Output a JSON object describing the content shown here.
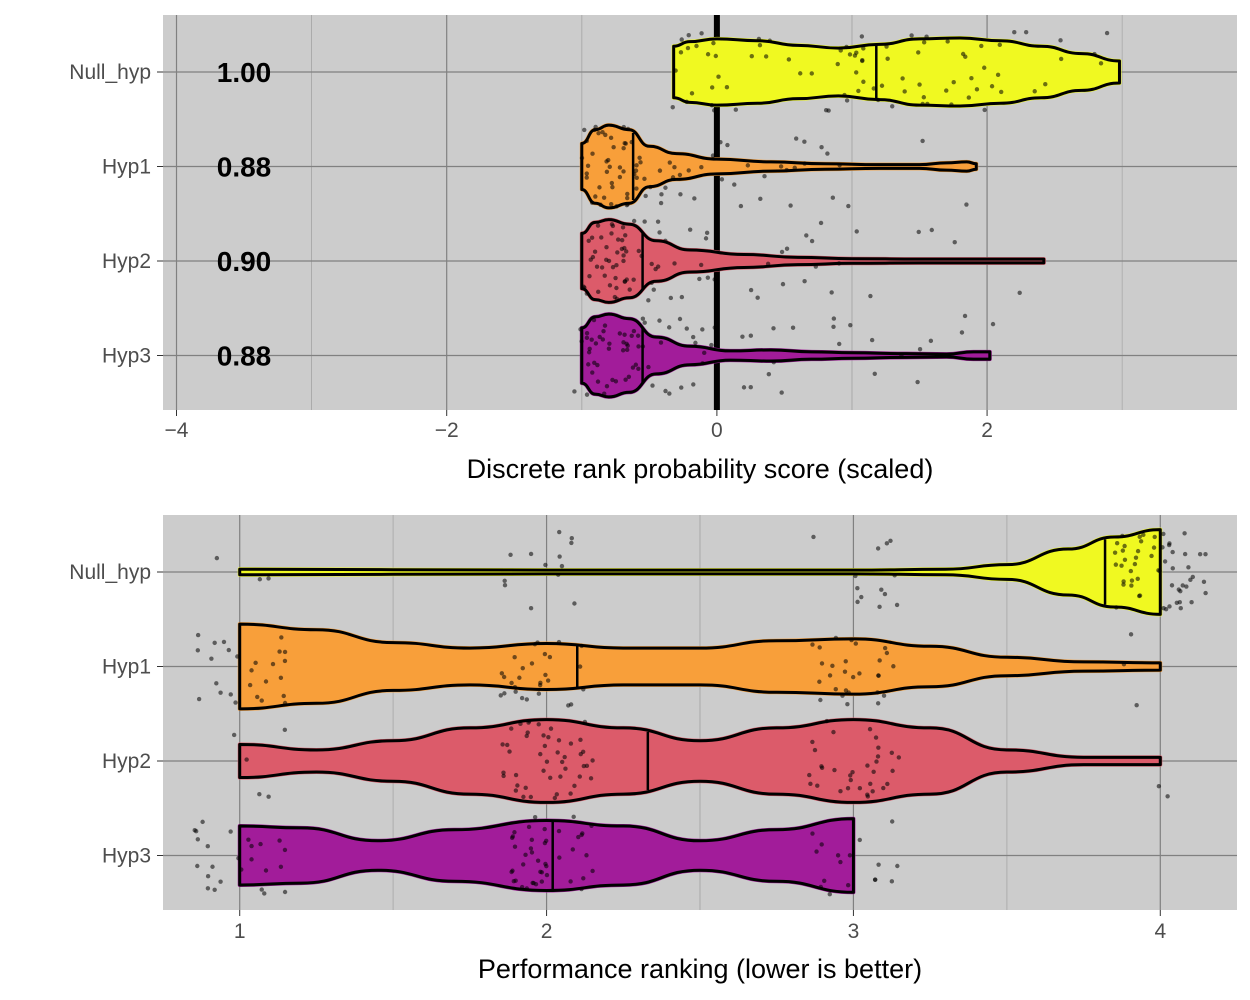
{
  "chart_data": [
    {
      "type": "violin",
      "panel": "top",
      "orientation": "horizontal",
      "xlabel": "Discrete rank probability score (scaled)",
      "ylabel": "",
      "xlim": [
        -4.1,
        3.85
      ],
      "xticks": [
        -4,
        -2,
        0,
        2
      ],
      "xtick_labels": [
        "−4",
        "−2",
        "0",
        "2"
      ],
      "grid": true,
      "reference_line_x": 0,
      "categories": [
        "Null_hyp",
        "Hyp1",
        "Hyp2",
        "Hyp3"
      ],
      "annotations": [
        "1.00",
        "0.88",
        "0.90",
        "0.88"
      ],
      "series": [
        {
          "category": "Null_hyp",
          "color": "#f0f921",
          "min": -0.32,
          "max": 2.98,
          "median": 1.18,
          "profile": [
            [
              -0.32,
              0.28
            ],
            [
              -0.2,
              0.33
            ],
            [
              0.0,
              0.36
            ],
            [
              0.3,
              0.34
            ],
            [
              0.6,
              0.29
            ],
            [
              0.9,
              0.26
            ],
            [
              1.2,
              0.3
            ],
            [
              1.5,
              0.36
            ],
            [
              1.8,
              0.37
            ],
            [
              2.1,
              0.34
            ],
            [
              2.4,
              0.28
            ],
            [
              2.7,
              0.2
            ],
            [
              2.98,
              0.12
            ]
          ]
        },
        {
          "category": "Hyp1",
          "color": "#f89f3a",
          "min": -1.0,
          "max": 1.92,
          "median": -0.62,
          "profile": [
            [
              -1.0,
              0.25
            ],
            [
              -0.9,
              0.4
            ],
            [
              -0.8,
              0.45
            ],
            [
              -0.65,
              0.4
            ],
            [
              -0.5,
              0.22
            ],
            [
              -0.3,
              0.14
            ],
            [
              0.0,
              0.08
            ],
            [
              0.4,
              0.05
            ],
            [
              0.8,
              0.03
            ],
            [
              1.2,
              0.02
            ],
            [
              1.5,
              0.02
            ],
            [
              1.7,
              0.04
            ],
            [
              1.85,
              0.05
            ],
            [
              1.92,
              0.03
            ]
          ]
        },
        {
          "category": "Hyp2",
          "color": "#dc5b6a",
          "min": -1.0,
          "max": 2.42,
          "median": -0.55,
          "profile": [
            [
              -1.0,
              0.3
            ],
            [
              -0.9,
              0.42
            ],
            [
              -0.8,
              0.45
            ],
            [
              -0.65,
              0.4
            ],
            [
              -0.45,
              0.22
            ],
            [
              -0.2,
              0.12
            ],
            [
              0.2,
              0.07
            ],
            [
              0.6,
              0.04
            ],
            [
              1.0,
              0.025
            ],
            [
              1.5,
              0.02
            ],
            [
              2.0,
              0.02
            ],
            [
              2.3,
              0.02
            ],
            [
              2.42,
              0.02
            ]
          ]
        },
        {
          "category": "Hyp3",
          "color": "#a21c9a",
          "min": -1.0,
          "max": 2.02,
          "median": -0.55,
          "profile": [
            [
              -1.0,
              0.3
            ],
            [
              -0.9,
              0.42
            ],
            [
              -0.8,
              0.45
            ],
            [
              -0.65,
              0.4
            ],
            [
              -0.45,
              0.2
            ],
            [
              -0.2,
              0.1
            ],
            [
              0.1,
              0.05
            ],
            [
              0.4,
              0.06
            ],
            [
              0.7,
              0.04
            ],
            [
              1.0,
              0.03
            ],
            [
              1.4,
              0.02
            ],
            [
              1.7,
              0.015
            ],
            [
              1.9,
              0.04
            ],
            [
              2.02,
              0.04
            ]
          ]
        }
      ]
    },
    {
      "type": "violin",
      "panel": "bottom",
      "orientation": "horizontal",
      "xlabel": "Performance ranking (lower is better)",
      "ylabel": "",
      "xlim": [
        0.75,
        4.25
      ],
      "xticks": [
        1,
        2,
        3,
        4
      ],
      "xtick_labels": [
        "1",
        "2",
        "3",
        "4"
      ],
      "grid": true,
      "categories": [
        "Null_hyp",
        "Hyp1",
        "Hyp2",
        "Hyp3"
      ],
      "series": [
        {
          "category": "Null_hyp",
          "color": "#f0f921",
          "min": 1.0,
          "max": 4.0,
          "median": 3.82,
          "profile": [
            [
              1.0,
              0.03
            ],
            [
              2.0,
              0.02
            ],
            [
              3.0,
              0.02
            ],
            [
              3.3,
              0.03
            ],
            [
              3.5,
              0.08
            ],
            [
              3.7,
              0.25
            ],
            [
              3.85,
              0.38
            ],
            [
              4.0,
              0.46
            ]
          ]
        },
        {
          "category": "Hyp1",
          "color": "#f89f3a",
          "min": 1.0,
          "max": 4.0,
          "median": 2.1,
          "profile": [
            [
              1.0,
              0.46
            ],
            [
              1.25,
              0.4
            ],
            [
              1.5,
              0.26
            ],
            [
              1.75,
              0.2
            ],
            [
              2.0,
              0.25
            ],
            [
              2.25,
              0.2
            ],
            [
              2.5,
              0.2
            ],
            [
              2.75,
              0.28
            ],
            [
              3.0,
              0.3
            ],
            [
              3.25,
              0.22
            ],
            [
              3.5,
              0.1
            ],
            [
              3.75,
              0.05
            ],
            [
              4.0,
              0.04
            ]
          ]
        },
        {
          "category": "Hyp2",
          "color": "#dc5b6a",
          "min": 1.0,
          "max": 4.0,
          "median": 2.33,
          "profile": [
            [
              1.0,
              0.18
            ],
            [
              1.25,
              0.12
            ],
            [
              1.5,
              0.22
            ],
            [
              1.75,
              0.36
            ],
            [
              2.0,
              0.45
            ],
            [
              2.25,
              0.36
            ],
            [
              2.5,
              0.22
            ],
            [
              2.75,
              0.36
            ],
            [
              3.0,
              0.45
            ],
            [
              3.25,
              0.36
            ],
            [
              3.5,
              0.12
            ],
            [
              3.75,
              0.04
            ],
            [
              4.0,
              0.04
            ]
          ]
        },
        {
          "category": "Hyp3",
          "color": "#a21c9a",
          "min": 1.0,
          "max": 3.0,
          "median": 2.02,
          "profile": [
            [
              1.0,
              0.32
            ],
            [
              1.2,
              0.3
            ],
            [
              1.45,
              0.16
            ],
            [
              1.7,
              0.28
            ],
            [
              2.0,
              0.38
            ],
            [
              2.25,
              0.32
            ],
            [
              2.5,
              0.16
            ],
            [
              2.75,
              0.28
            ],
            [
              3.0,
              0.4
            ]
          ]
        }
      ]
    }
  ]
}
